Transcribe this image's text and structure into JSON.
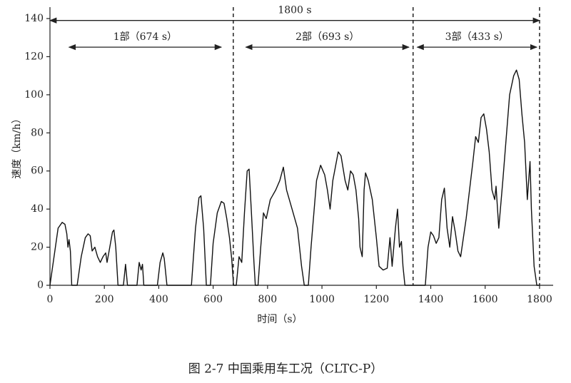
{
  "chart_data": {
    "type": "line",
    "caption": "图 2-7 中国乘用车工况（CLTC-P）",
    "xlabel": "时间（s）",
    "ylabel": "速度（km/h）",
    "color": "#111111",
    "xlim": [
      0,
      1850
    ],
    "ylim": [
      0,
      146
    ],
    "xticks": [
      0,
      200,
      400,
      600,
      800,
      1000,
      1200,
      1400,
      1600,
      1800
    ],
    "yticks": [
      0,
      20,
      40,
      60,
      80,
      100,
      120,
      140
    ],
    "dividers": [
      674,
      1335,
      1800
    ],
    "annotations": [
      {
        "text": "1800 s",
        "span": [
          0,
          1800
        ],
        "y": 139
      },
      {
        "text": "1部（674 s）",
        "span": [
          70,
          630
        ],
        "y": 125
      },
      {
        "text": "2部（693 s）",
        "span": [
          720,
          1320
        ],
        "y": 125
      },
      {
        "text": "3部（433 s）",
        "span": [
          1350,
          1790
        ],
        "y": 125
      }
    ],
    "x": [
      0,
      20,
      30,
      45,
      55,
      62,
      66,
      70,
      75,
      80,
      100,
      115,
      130,
      140,
      148,
      155,
      165,
      175,
      185,
      195,
      205,
      210,
      220,
      230,
      235,
      242,
      250,
      270,
      278,
      285,
      320,
      328,
      335,
      340,
      345,
      395,
      405,
      415,
      420,
      430,
      520,
      535,
      548,
      555,
      565,
      575,
      590,
      600,
      615,
      630,
      640,
      650,
      660,
      668,
      675,
      685,
      695,
      705,
      715,
      725,
      732,
      740,
      750,
      755,
      765,
      775,
      785,
      795,
      810,
      830,
      845,
      858,
      870,
      890,
      910,
      925,
      935,
      950,
      960,
      980,
      995,
      1010,
      1020,
      1030,
      1040,
      1060,
      1070,
      1085,
      1095,
      1105,
      1115,
      1125,
      1135,
      1140,
      1148,
      1155,
      1160,
      1170,
      1185,
      1200,
      1210,
      1225,
      1240,
      1250,
      1258,
      1270,
      1278,
      1285,
      1292,
      1298,
      1305,
      1380,
      1390,
      1400,
      1410,
      1420,
      1430,
      1440,
      1450,
      1460,
      1470,
      1480,
      1490,
      1500,
      1510,
      1530,
      1555,
      1565,
      1575,
      1585,
      1595,
      1605,
      1615,
      1625,
      1635,
      1640,
      1650,
      1665,
      1690,
      1705,
      1715,
      1725,
      1735,
      1745,
      1755,
      1760,
      1765,
      1770,
      1780,
      1790,
      1800
    ],
    "values": [
      0,
      20,
      30,
      33,
      32,
      27,
      20,
      24,
      18,
      0,
      0,
      15,
      25,
      27,
      26,
      18,
      20,
      15,
      12,
      15,
      17,
      12,
      20,
      28,
      29,
      20,
      0,
      0,
      11,
      0,
      0,
      12,
      8,
      11,
      0,
      0,
      12,
      17,
      14,
      0,
      0,
      30,
      46,
      47,
      30,
      0,
      0,
      22,
      38,
      44,
      43,
      35,
      25,
      14,
      0,
      0,
      15,
      12,
      38,
      60,
      61,
      40,
      12,
      0,
      0,
      20,
      38,
      35,
      45,
      50,
      55,
      62,
      50,
      40,
      30,
      10,
      0,
      0,
      20,
      55,
      63,
      58,
      50,
      40,
      55,
      70,
      68,
      55,
      50,
      60,
      58,
      50,
      35,
      20,
      15,
      50,
      59,
      55,
      45,
      25,
      10,
      8,
      9,
      25,
      10,
      30,
      40,
      20,
      23,
      10,
      0,
      0,
      20,
      28,
      26,
      22,
      25,
      45,
      51,
      30,
      20,
      36,
      28,
      18,
      15,
      35,
      65,
      78,
      75,
      88,
      90,
      82,
      70,
      50,
      45,
      52,
      30,
      55,
      100,
      110,
      113,
      108,
      90,
      75,
      45,
      55,
      65,
      40,
      10,
      0,
      0
    ]
  }
}
